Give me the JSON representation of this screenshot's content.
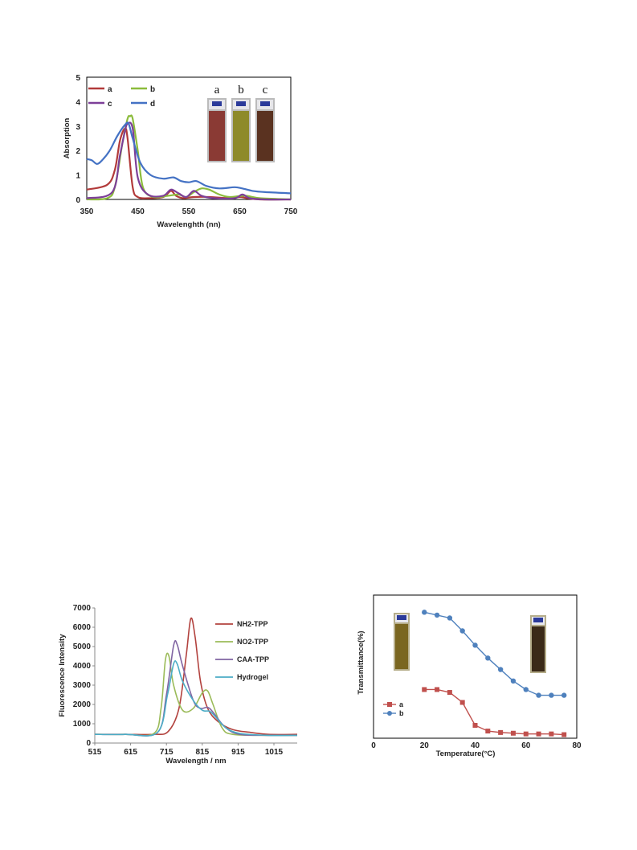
{
  "charts": [
    {
      "id": "abs",
      "type": "line",
      "xlabel": "Wavelenghth (nn)",
      "ylabel": "Absorption",
      "xlim": [
        350,
        750
      ],
      "ylim": [
        0,
        5
      ],
      "xticks": [
        350,
        450,
        550,
        650,
        750
      ],
      "yticks": [
        0,
        1,
        2,
        3,
        4,
        5
      ],
      "grid": false,
      "legend": "top-left",
      "inset_labels": [
        "a",
        "b",
        "c"
      ],
      "inset_colors": [
        "#8a3a34",
        "#8e8a2a",
        "#5a3220"
      ],
      "series": [
        {
          "name": "a",
          "color": "#b23a3a",
          "x": [
            350,
            390,
            405,
            415,
            425,
            430,
            440,
            450,
            470,
            500,
            515,
            525,
            540,
            560,
            590,
            630,
            650,
            665,
            690,
            750
          ],
          "y": [
            0.4,
            0.6,
            1.2,
            2.4,
            2.9,
            2.5,
            0.5,
            0.1,
            0.05,
            0.1,
            0.35,
            0.15,
            0.05,
            0.1,
            0.1,
            0.05,
            0.1,
            0.05,
            0.0,
            0.0
          ]
        },
        {
          "name": "b",
          "color": "#8cbc3c",
          "x": [
            350,
            390,
            405,
            420,
            430,
            435,
            440,
            450,
            460,
            480,
            510,
            530,
            545,
            560,
            575,
            590,
            610,
            630,
            660,
            690,
            750
          ],
          "y": [
            0.0,
            0.05,
            0.5,
            2.3,
            3.3,
            3.4,
            3.3,
            2.0,
            0.5,
            0.1,
            0.15,
            0.2,
            0.1,
            0.3,
            0.45,
            0.4,
            0.2,
            0.1,
            0.15,
            0.05,
            0.0
          ]
        },
        {
          "name": "c",
          "color": "#7d3f98",
          "x": [
            350,
            400,
            415,
            425,
            430,
            440,
            450,
            470,
            500,
            515,
            530,
            545,
            560,
            575,
            600,
            640,
            655,
            670,
            700,
            750
          ],
          "y": [
            0.05,
            0.3,
            1.8,
            2.8,
            3.1,
            2.9,
            0.9,
            0.2,
            0.15,
            0.4,
            0.25,
            0.1,
            0.35,
            0.15,
            0.05,
            0.05,
            0.2,
            0.05,
            0.0,
            0.0
          ]
        },
        {
          "name": "d",
          "color": "#4472c4",
          "x": [
            350,
            360,
            370,
            380,
            395,
            410,
            425,
            432,
            440,
            455,
            475,
            500,
            520,
            535,
            550,
            565,
            585,
            610,
            640,
            655,
            675,
            700,
            750
          ],
          "y": [
            1.65,
            1.6,
            1.45,
            1.6,
            2.0,
            2.6,
            3.05,
            3.1,
            2.5,
            1.5,
            1.0,
            0.85,
            0.9,
            0.75,
            0.7,
            0.75,
            0.55,
            0.45,
            0.5,
            0.45,
            0.35,
            0.3,
            0.25
          ]
        }
      ]
    },
    {
      "id": "fluor",
      "type": "line",
      "xlabel": "Wavelength / nm",
      "ylabel": "Fluorescence Intensity",
      "xlim": [
        515,
        1080
      ],
      "ylim": [
        0,
        7000
      ],
      "xticks": [
        515,
        615,
        715,
        815,
        915,
        1015
      ],
      "yticks": [
        0,
        1000,
        2000,
        3000,
        4000,
        5000,
        6000,
        7000
      ],
      "grid": false,
      "legend": "right",
      "series": [
        {
          "name": "NH2-TPP",
          "color": "#b2423e",
          "x": [
            515,
            600,
            680,
            720,
            750,
            770,
            783,
            795,
            810,
            830,
            860,
            900,
            950,
            1000,
            1080
          ],
          "y": [
            450,
            450,
            450,
            600,
            1800,
            4500,
            6450,
            5500,
            3200,
            1800,
            1100,
            700,
            550,
            450,
            450
          ]
        },
        {
          "name": "NO2-TPP",
          "color": "#9bbb59",
          "x": [
            515,
            600,
            680,
            700,
            712,
            722,
            735,
            760,
            790,
            815,
            830,
            845,
            870,
            900,
            1000,
            1080
          ],
          "y": [
            450,
            450,
            500,
            1800,
            4300,
            4500,
            3000,
            1700,
            1800,
            2600,
            2700,
            2000,
            800,
            450,
            400,
            400
          ]
        },
        {
          "name": "CAA-TPP",
          "color": "#8064a2",
          "x": [
            515,
            600,
            690,
            715,
            735,
            745,
            760,
            790,
            810,
            830,
            845,
            880,
            920,
            1000,
            1080
          ],
          "y": [
            450,
            450,
            550,
            2500,
            5050,
            5100,
            4000,
            2200,
            1800,
            1850,
            1600,
            800,
            450,
            400,
            400
          ]
        },
        {
          "name": "Hydrogel",
          "color": "#4bacc6",
          "x": [
            515,
            600,
            690,
            718,
            735,
            745,
            760,
            790,
            815,
            835,
            850,
            880,
            920,
            1000,
            1080
          ],
          "y": [
            450,
            450,
            550,
            2500,
            4100,
            4100,
            3200,
            2200,
            1700,
            1650,
            1400,
            800,
            500,
            400,
            400
          ]
        }
      ]
    },
    {
      "id": "trans",
      "type": "line",
      "xlabel": "Temperature(°C)",
      "ylabel": "Transmittance(%)",
      "xlim": [
        0,
        80
      ],
      "ylim": [
        0,
        100
      ],
      "xticks": [
        0,
        20,
        40,
        60,
        80
      ],
      "yticks": [],
      "grid": false,
      "legend": "bottom-left",
      "inset_colors": [
        "#7a6620",
        "#3b2a18"
      ],
      "series": [
        {
          "name": "a",
          "color": "#c0504d",
          "marker": "square",
          "x": [
            20,
            25,
            30,
            35,
            40,
            45,
            50,
            55,
            60,
            65,
            70,
            75
          ],
          "y": [
            34,
            34,
            32,
            25,
            9,
            5,
            4,
            3.5,
            3,
            3,
            3,
            2.5
          ]
        },
        {
          "name": "b",
          "color": "#4f81bd",
          "marker": "circle",
          "x": [
            20,
            25,
            30,
            35,
            40,
            45,
            50,
            55,
            60,
            65,
            70,
            75
          ],
          "y": [
            88,
            86,
            84,
            75,
            65,
            56,
            48,
            40,
            34,
            30,
            30,
            30
          ]
        }
      ]
    }
  ]
}
